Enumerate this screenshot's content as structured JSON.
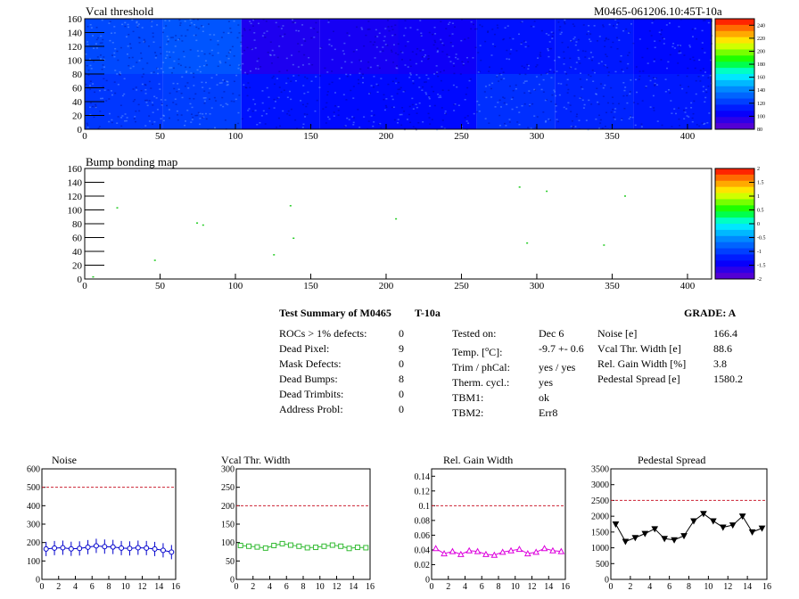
{
  "header": {
    "left_title": "Vcal threshold",
    "right_title": "M0465-061206.10:45T-10a"
  },
  "chart_data": [
    {
      "type": "heatmap",
      "title": "Vcal threshold",
      "xlim": [
        0,
        416
      ],
      "ylim": [
        0,
        160
      ],
      "x_ticks": [
        0,
        50,
        100,
        150,
        200,
        250,
        300,
        350,
        400
      ],
      "y_ticks": [
        0,
        20,
        40,
        60,
        80,
        100,
        120,
        140,
        160
      ],
      "color_scale": {
        "min": 80,
        "max": 250,
        "ticks": [
          80,
          100,
          120,
          140,
          160,
          180,
          200,
          220,
          240
        ]
      },
      "blocks": {
        "columns": [
          0,
          52,
          104,
          156,
          208,
          260,
          312,
          364,
          416
        ],
        "rows": [
          0,
          80,
          160
        ],
        "values_bottom": [
          120,
          122,
          110,
          108,
          108,
          118,
          115,
          112
        ],
        "values_top": [
          125,
          128,
          98,
          100,
          102,
          110,
          112,
          108
        ]
      }
    },
    {
      "type": "scatter",
      "title": "Bump bonding map",
      "xlim": [
        0,
        416
      ],
      "ylim": [
        0,
        160
      ],
      "x_ticks": [
        0,
        50,
        100,
        150,
        200,
        250,
        300,
        350,
        400
      ],
      "y_ticks": [
        0,
        20,
        40,
        60,
        80,
        100,
        120,
        140,
        160
      ],
      "color_scale": {
        "min": -2,
        "max": 2,
        "ticks": [
          "2",
          "1.5",
          "1",
          "0.5",
          "0",
          "-0.5",
          "-1",
          "-1.5",
          "-2"
        ]
      },
      "points": [
        {
          "x": 5,
          "y": 4
        },
        {
          "x": 21,
          "y": 104
        },
        {
          "x": 46,
          "y": 28
        },
        {
          "x": 74,
          "y": 82
        },
        {
          "x": 78,
          "y": 79
        },
        {
          "x": 125,
          "y": 36
        },
        {
          "x": 136,
          "y": 107
        },
        {
          "x": 138,
          "y": 60
        },
        {
          "x": 206,
          "y": 88
        },
        {
          "x": 288,
          "y": 134
        },
        {
          "x": 293,
          "y": 53
        },
        {
          "x": 306,
          "y": 128
        },
        {
          "x": 344,
          "y": 50
        },
        {
          "x": 358,
          "y": 121
        }
      ]
    },
    {
      "type": "line",
      "title": "Noise",
      "xlim": [
        0,
        16
      ],
      "ylim": [
        0,
        600
      ],
      "x_ticks": [
        0,
        2,
        4,
        6,
        8,
        10,
        12,
        14,
        16
      ],
      "y_ticks": [
        0,
        100,
        200,
        300,
        400,
        500,
        600
      ],
      "limit": 500,
      "color": "#0000cc",
      "marker": "circle-errorbar",
      "x": [
        0.5,
        1.5,
        2.5,
        3.5,
        4.5,
        5.5,
        6.5,
        7.5,
        8.5,
        9.5,
        10.5,
        11.5,
        12.5,
        13.5,
        14.5,
        15.5
      ],
      "y": [
        165,
        170,
        172,
        166,
        168,
        175,
        182,
        178,
        176,
        170,
        168,
        172,
        170,
        165,
        158,
        148
      ]
    },
    {
      "type": "line",
      "title": "Vcal Thr. Width",
      "xlim": [
        0,
        16
      ],
      "ylim": [
        0,
        300
      ],
      "x_ticks": [
        0,
        2,
        4,
        6,
        8,
        10,
        12,
        14,
        16
      ],
      "y_ticks": [
        0,
        50,
        100,
        150,
        200,
        250,
        300
      ],
      "limit": 200,
      "color": "#33bb33",
      "marker": "open-square",
      "x": [
        0.5,
        1.5,
        2.5,
        3.5,
        4.5,
        5.5,
        6.5,
        7.5,
        8.5,
        9.5,
        10.5,
        11.5,
        12.5,
        13.5,
        14.5,
        15.5
      ],
      "y": [
        92,
        90,
        88,
        85,
        92,
        97,
        93,
        90,
        86,
        87,
        90,
        93,
        90,
        84,
        87,
        86
      ]
    },
    {
      "type": "line",
      "title": "Rel. Gain Width",
      "xlim": [
        0,
        16
      ],
      "ylim": [
        0,
        0.15
      ],
      "x_ticks": [
        0,
        2,
        4,
        6,
        8,
        10,
        12,
        14,
        16
      ],
      "y_ticks": [
        0,
        0.02,
        0.04,
        0.06,
        0.08,
        0.1,
        0.12,
        0.14
      ],
      "y_tick_labels": [
        "0",
        "0.02",
        "0.04",
        "0.06",
        "0.08",
        "0.1",
        "0.12",
        "0.14"
      ],
      "limit": 0.1,
      "color": "#dd00dd",
      "marker": "triangle",
      "x": [
        0.5,
        1.5,
        2.5,
        3.5,
        4.5,
        5.5,
        6.5,
        7.5,
        8.5,
        9.5,
        10.5,
        11.5,
        12.5,
        13.5,
        14.5,
        15.5
      ],
      "y": [
        0.042,
        0.035,
        0.038,
        0.034,
        0.039,
        0.038,
        0.034,
        0.033,
        0.037,
        0.039,
        0.041,
        0.035,
        0.037,
        0.042,
        0.039,
        0.038
      ]
    },
    {
      "type": "line",
      "title": "Pedestal Spread",
      "xlim": [
        0,
        16
      ],
      "ylim": [
        0,
        3500
      ],
      "x_ticks": [
        0,
        2,
        4,
        6,
        8,
        10,
        12,
        14,
        16
      ],
      "y_ticks": [
        0,
        500,
        1000,
        1500,
        2000,
        2500,
        3000,
        3500
      ],
      "limit": 2500,
      "color": "#000000",
      "marker": "triangle-down",
      "x": [
        0.5,
        1.5,
        2.5,
        3.5,
        4.5,
        5.5,
        6.5,
        7.5,
        8.5,
        9.5,
        10.5,
        11.5,
        12.5,
        13.5,
        14.5,
        15.5
      ],
      "y": [
        1750,
        1200,
        1320,
        1450,
        1600,
        1290,
        1250,
        1380,
        1850,
        2080,
        1850,
        1650,
        1720,
        2000,
        1500,
        1620
      ]
    }
  ],
  "summary": {
    "title": "Test Summary of M0465",
    "temp_label": "T-10a",
    "grade": "GRADE:  A",
    "defects": [
      {
        "label": "ROCs > 1% defects:",
        "value": "0"
      },
      {
        "label": "Dead Pixel:",
        "value": "9"
      },
      {
        "label": "Mask Defects:",
        "value": "0"
      },
      {
        "label": "Dead Bumps:",
        "value": "8"
      },
      {
        "label": "Dead Trimbits:",
        "value": "0"
      },
      {
        "label": "Address Probl:",
        "value": "0"
      }
    ],
    "conditions": [
      {
        "label": "Tested on:",
        "value": "Dec 6"
      },
      {
        "label": "Temp. [°C]:",
        "value": "-9.7 +- 0.6"
      },
      {
        "label": "Trim / phCal:",
        "value": "yes / yes"
      },
      {
        "label": "Therm. cycl.:",
        "value": "yes"
      },
      {
        "label": "TBM1:",
        "value": "ok"
      },
      {
        "label": "TBM2:",
        "value": "Err8"
      }
    ],
    "performance": [
      {
        "label": "Noise [e]",
        "value": "166.4"
      },
      {
        "label": "Vcal Thr. Width [e]",
        "value": "88.6"
      },
      {
        "label": "Rel. Gain Width [%]",
        "value": "3.8"
      },
      {
        "label": "Pedestal Spread [e]",
        "value": "1580.2"
      }
    ]
  }
}
